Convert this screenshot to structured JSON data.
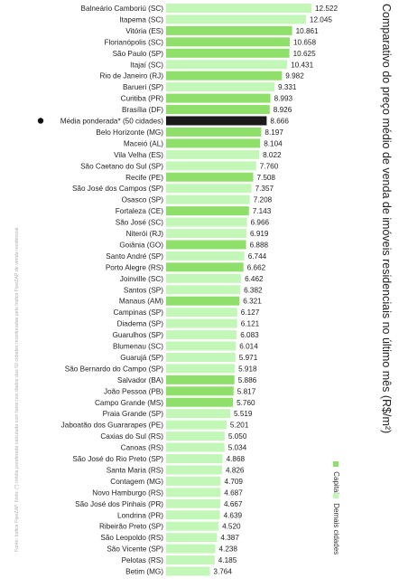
{
  "title": "Comparativo do preço médio de venda de imóveis residenciais no último mês (R$/m²)",
  "note": "Fonte: Índice FipeZAP. Nota: (*) média ponderada calculada com base nos dados das 50 cidades monitoradas pelo Índice FipeZAP de venda residencial",
  "legend": {
    "capitais": "Capitais",
    "demais": "Demais cidades"
  },
  "colors": {
    "capitais": "#8fe06a",
    "demais": "#c3f7b8",
    "media": "#1a1a1a"
  },
  "chart_data": {
    "type": "bar",
    "orientation": "horizontal",
    "title": "Comparativo do preço médio de venda de imóveis residenciais no último mês (R$/m²)",
    "legend_position": "right",
    "categories": [
      "Balneário Camboriú (SC)",
      "Itapema (SC)",
      "Vitória (ES)",
      "Florianópolis (SC)",
      "São Paulo (SP)",
      "Itajaí (SC)",
      "Rio de Janeiro (RJ)",
      "Barueri (SP)",
      "Curitiba (PR)",
      "Brasília (DF)",
      "Média ponderada* (50 cidades)",
      "Belo Horizonte (MG)",
      "Maceió (AL)",
      "Vila Velha (ES)",
      "São Caetano do Sul (SP)",
      "Recife (PE)",
      "São José dos Campos (SP)",
      "Osasco (SP)",
      "Fortaleza (CE)",
      "São José (SC)",
      "Niterói (RJ)",
      "Goiânia (GO)",
      "Santo André (SP)",
      "Porto Alegre (RS)",
      "Joinville (SC)",
      "Santos (SP)",
      "Manaus (AM)",
      "Campinas (SP)",
      "Diadema (SP)",
      "Guarulhos (SP)",
      "Blumenau (SC)",
      "Guarujá (SP)",
      "São Bernardo do Campo (SP)",
      "Salvador (BA)",
      "João Pessoa (PB)",
      "Campo Grande (MS)",
      "Praia Grande (SP)",
      "Jaboatão dos Guararapes (PE)",
      "Caxias do Sul (RS)",
      "Canoas (RS)",
      "São José do Rio Preto (SP)",
      "Santa Maria (RS)",
      "Contagem (MG)",
      "Novo Hamburgo (RS)",
      "São José dos Pinhais (PR)",
      "Londrina (PR)",
      "Ribeirão Preto (SP)",
      "São Leopoldo (RS)",
      "São Vicente (SP)",
      "Pelotas (RS)",
      "Betim (MG)"
    ],
    "values": [
      12522,
      12045,
      10861,
      10658,
      10625,
      10431,
      9982,
      9331,
      8993,
      8926,
      8666,
      8197,
      8104,
      8022,
      7760,
      7508,
      7357,
      7208,
      7143,
      6966,
      6919,
      6888,
      6744,
      6662,
      6462,
      6382,
      6321,
      6127,
      6121,
      6083,
      6014,
      5971,
      5918,
      5886,
      5817,
      5760,
      5519,
      5201,
      5050,
      5034,
      4868,
      4826,
      4709,
      4687,
      4667,
      4639,
      4520,
      4387,
      4238,
      4185,
      3764
    ],
    "value_labels": [
      "12.522",
      "12.045",
      "10.861",
      "10.658",
      "10.625",
      "10.431",
      "9.982",
      "9.331",
      "8.993",
      "8.926",
      "8.666",
      "8.197",
      "8.104",
      "8.022",
      "7.760",
      "7.508",
      "7.357",
      "7.208",
      "7.143",
      "6.966",
      "6.919",
      "6.888",
      "6.744",
      "6.662",
      "6.462",
      "6.382",
      "6.321",
      "6.127",
      "6.121",
      "6.083",
      "6.014",
      "5.971",
      "5.918",
      "5.886",
      "5.817",
      "5.760",
      "5.519",
      "5.201",
      "5.050",
      "5.034",
      "4.868",
      "4.826",
      "4.709",
      "4.687",
      "4.667",
      "4.639",
      "4.520",
      "4.387",
      "4.238",
      "4.185",
      "3.764"
    ],
    "groups": [
      "demais",
      "demais",
      "capitais",
      "capitais",
      "capitais",
      "demais",
      "capitais",
      "demais",
      "capitais",
      "capitais",
      "media",
      "capitais",
      "capitais",
      "demais",
      "demais",
      "capitais",
      "demais",
      "demais",
      "capitais",
      "demais",
      "demais",
      "capitais",
      "demais",
      "capitais",
      "demais",
      "demais",
      "capitais",
      "demais",
      "demais",
      "demais",
      "demais",
      "demais",
      "demais",
      "capitais",
      "capitais",
      "capitais",
      "demais",
      "demais",
      "demais",
      "demais",
      "demais",
      "demais",
      "demais",
      "demais",
      "demais",
      "demais",
      "demais",
      "demais",
      "demais",
      "demais",
      "demais"
    ],
    "xlim": [
      0,
      12522
    ]
  }
}
